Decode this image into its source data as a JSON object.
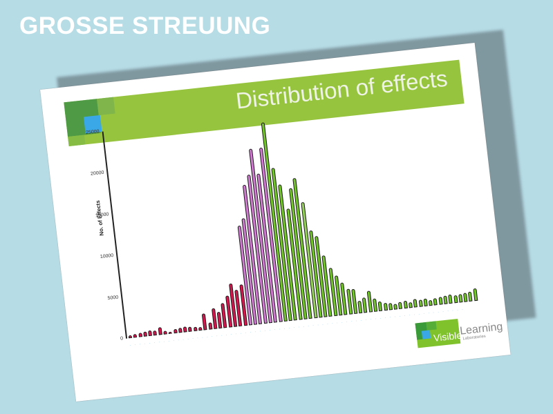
{
  "slide": {
    "title": "GROSSE STREUUNG"
  },
  "card": {
    "band_title": "Distribution of effects",
    "logo": {
      "word1": "Visible",
      "word2": "Learning",
      "word3": "Laboratories"
    }
  },
  "colors": {
    "background": "#b6dce6",
    "band": "#97c43e",
    "negative_bars": "#d6174f",
    "low_bars": "#d17ad1",
    "positive_bars": "#74c82a",
    "highlight_bar": "#96d45a",
    "axis_labels": "#4aaee8"
  },
  "chart_data": {
    "type": "bar",
    "title": "Distribution of effects",
    "xlabel": "",
    "ylabel": "No. of Effects",
    "ylim": [
      0,
      25000
    ],
    "yticks": [
      "0",
      "5000",
      "10000",
      "15000",
      "20000",
      "25000"
    ],
    "grid": false,
    "legend": null,
    "x_tick_labels_legible": false,
    "values": [
      300,
      400,
      500,
      600,
      700,
      600,
      900,
      400,
      200,
      500,
      600,
      700,
      600,
      500,
      400,
      2000,
      800,
      2500,
      2000,
      3000,
      3800,
      5200,
      4400,
      5000,
      12000,
      12800,
      16800,
      18000,
      21000,
      18000,
      21000,
      24000,
      18500,
      16400,
      13400,
      15800,
      17000,
      14000,
      10500,
      9800,
      7400,
      5800,
      4800,
      3900,
      3100,
      3000,
      1500,
      1800,
      2600,
      1600,
      1200,
      900,
      800,
      700,
      800,
      900,
      700,
      1000,
      800,
      900,
      700,
      800,
      900,
      1000,
      1100,
      900,
      1000,
      1100,
      1200,
      1500
    ],
    "color_groups": [
      {
        "name": "negative",
        "from": 0,
        "to": 23,
        "color": "#d6174f"
      },
      {
        "name": "low",
        "from": 24,
        "to": 30,
        "color": "#d17ad1"
      },
      {
        "name": "positive",
        "from": 31,
        "to": 69,
        "color": "#74c82a"
      }
    ]
  }
}
